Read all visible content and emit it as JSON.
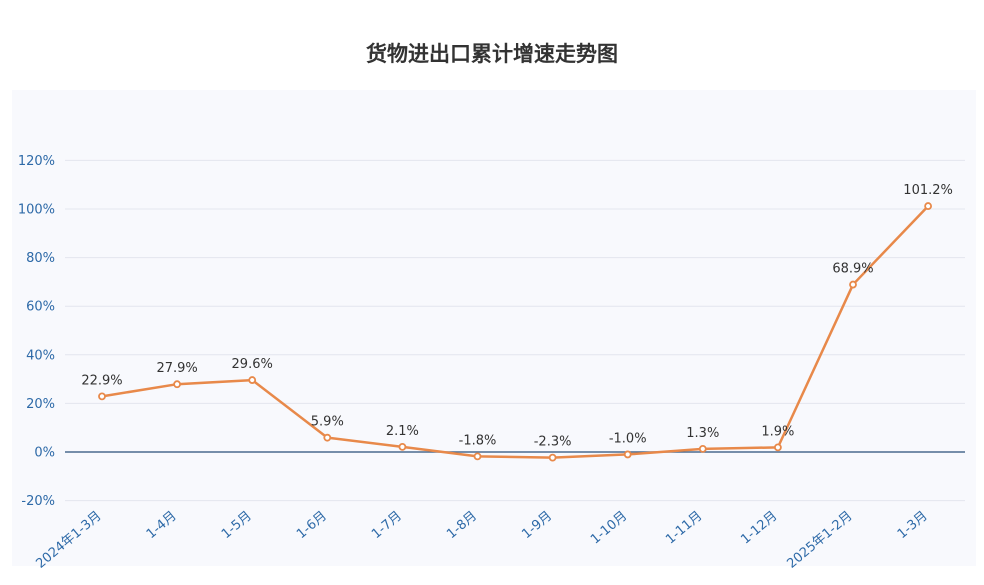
{
  "chart_data": {
    "type": "line",
    "title": "货物进出口累计增速走势图",
    "xlabel": "",
    "ylabel": "",
    "categories": [
      "2024年1-3月",
      "1-4月",
      "1-5月",
      "1-6月",
      "1-7月",
      "1-8月",
      "1-9月",
      "1-10月",
      "1-11月",
      "1-12月",
      "2025年1-2月",
      "1-3月"
    ],
    "series": [
      {
        "values": [
          22.9,
          27.9,
          29.6,
          5.9,
          2.1,
          -1.8,
          -2.3,
          -1.0,
          1.3,
          1.9,
          68.9,
          101.2
        ],
        "labels": [
          "22.9%",
          "27.9%",
          "29.6%",
          "5.9%",
          "2.1%",
          "-1.8%",
          "-2.3%",
          "-1.0%",
          "1.3%",
          "1.9%",
          "68.9%",
          "101.2%"
        ]
      }
    ],
    "y_ticks": [
      -20,
      0,
      20,
      40,
      60,
      80,
      100,
      120
    ],
    "y_tick_labels": [
      "-20%",
      "0%",
      "20%",
      "40%",
      "60%",
      "80%",
      "100%",
      "120%"
    ],
    "ylim": [
      -20,
      120
    ],
    "grid": true,
    "colors": {
      "line": "#e8894a",
      "axis_zero": "#4a6b8f",
      "tick": "#2e6aa8",
      "grid": "#e3e6ee"
    }
  }
}
